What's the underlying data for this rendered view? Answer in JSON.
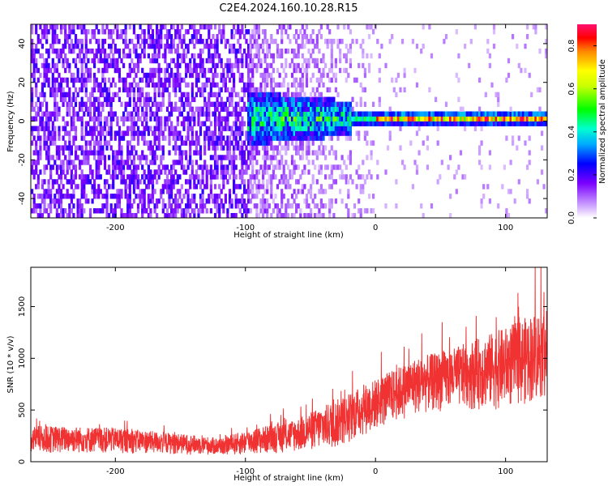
{
  "page": {
    "title": "C2E4.2024.160.10.28.R15"
  },
  "chart_data": [
    {
      "type": "heatmap",
      "title": "C2E4.2024.160.10.28.R15",
      "xlabel": "Height of straight line (km)",
      "ylabel": "Frequency (Hz)",
      "xlim": [
        -265,
        132
      ],
      "ylim": [
        -50,
        50
      ],
      "xticks": [
        -200,
        -100,
        0,
        100
      ],
      "xtick_labels": [
        "-200",
        "-100",
        "0",
        "100"
      ],
      "yticks": [
        -40,
        -20,
        0,
        20,
        40
      ],
      "ytick_labels": [
        "-40",
        "-20",
        "0",
        "20",
        "40"
      ],
      "colorbar": {
        "label": "Normalized spectral amplitude",
        "range": [
          0.0,
          0.9
        ],
        "ticks": [
          0.0,
          0.2,
          0.4,
          0.6,
          0.8
        ],
        "tick_labels": [
          "0.0",
          "0.2",
          "0.4",
          "0.6",
          "0.8"
        ]
      },
      "noise_onset_km": -98,
      "line_frequency_hz": 1.5,
      "grid": false
    },
    {
      "type": "line",
      "title": "",
      "xlabel": "Height of straight line (km)",
      "ylabel": "SNR (10 * v/v)",
      "xlim": [
        -265,
        132
      ],
      "ylim": [
        0,
        1880
      ],
      "xticks": [
        -200,
        -100,
        0,
        100
      ],
      "xtick_labels": [
        "-200",
        "-100",
        "0",
        "100"
      ],
      "yticks": [
        0,
        500,
        1000,
        1500
      ],
      "ytick_labels": [
        "0",
        "500",
        "1000",
        "1500"
      ],
      "color": "#f03232",
      "envelope_x": [
        -265,
        -200,
        -150,
        -120,
        -100,
        -60,
        -30,
        0,
        30,
        60,
        100,
        132
      ],
      "envelope_low": [
        80,
        80,
        70,
        60,
        60,
        90,
        120,
        300,
        450,
        500,
        500,
        600
      ],
      "envelope_high": [
        350,
        330,
        270,
        230,
        300,
        420,
        600,
        800,
        1000,
        1100,
        1300,
        1500
      ],
      "grid": false
    }
  ]
}
